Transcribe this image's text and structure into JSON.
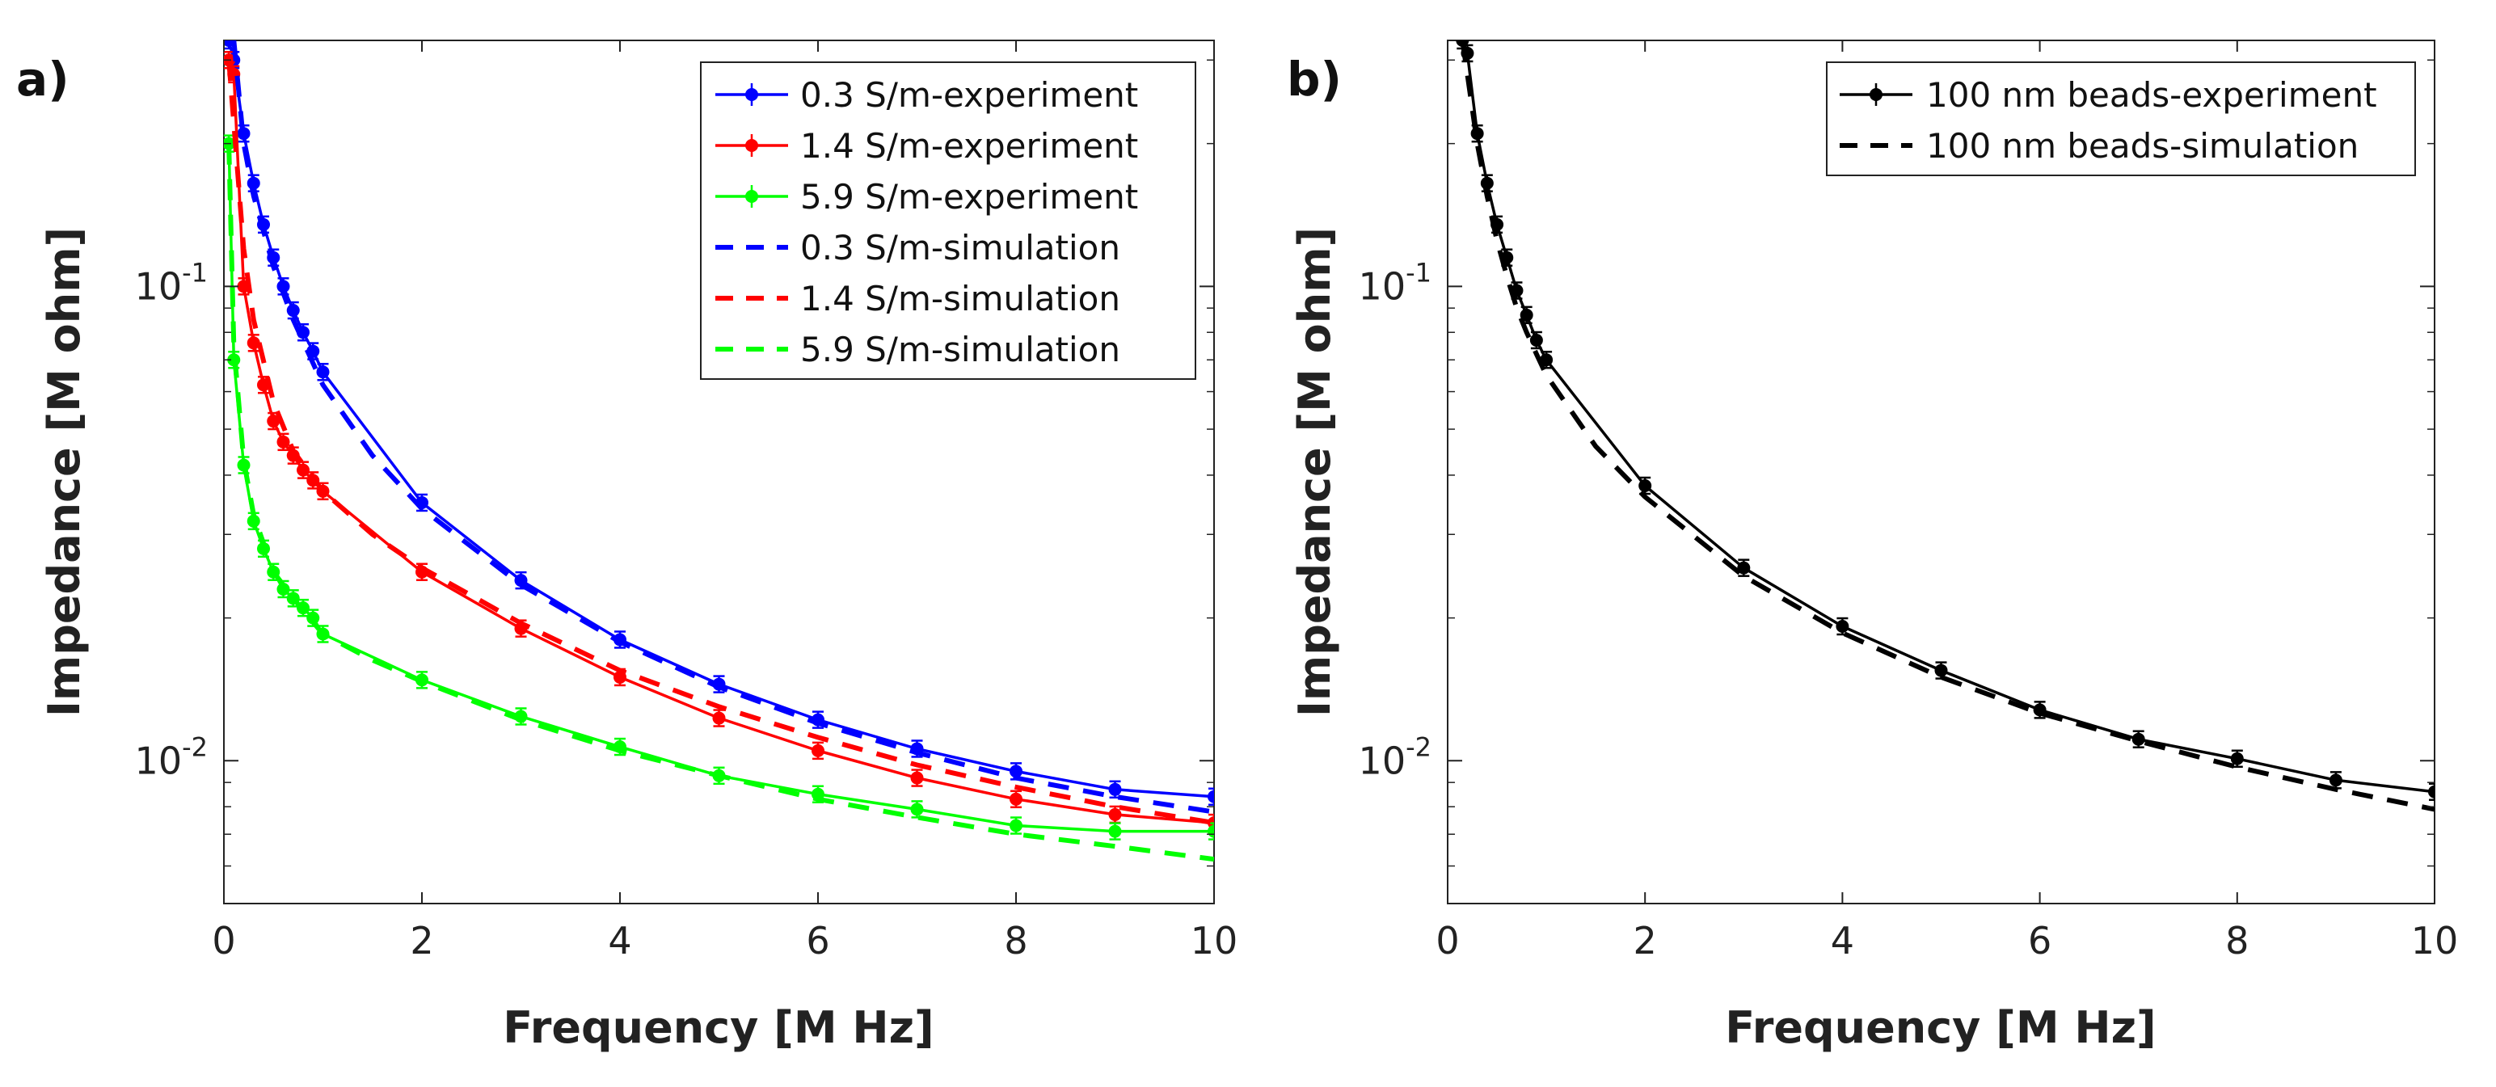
{
  "chart_data": [
    {
      "type": "line",
      "panel_label": "a)",
      "xlabel": "Frequency [M Hz]",
      "ylabel": "Impedance [M ohm]",
      "xscale": "linear",
      "yscale": "log",
      "xlim": [
        0,
        10
      ],
      "ylim": [
        0.005,
        0.33
      ],
      "xticks": [
        "0",
        "2",
        "4",
        "6",
        "8",
        "10"
      ],
      "yticks": [
        {
          "base": "10",
          "exp": "-2",
          "value": 0.01
        },
        {
          "base": "10",
          "exp": "-1",
          "value": 0.1
        }
      ],
      "grid": false,
      "legend_position": "top-right",
      "series": [
        {
          "name": "0.3 S/m-experiment",
          "style": "solid-errorbar",
          "color": "#0000ff",
          "x": [
            0.05,
            0.1,
            0.2,
            0.3,
            0.4,
            0.5,
            0.6,
            0.7,
            0.8,
            0.9,
            1,
            2,
            3,
            4,
            5,
            6,
            7,
            8,
            9,
            10
          ],
          "y": [
            0.33,
            0.3,
            0.21,
            0.165,
            0.135,
            0.115,
            0.1,
            0.089,
            0.08,
            0.073,
            0.066,
            0.035,
            0.024,
            0.018,
            0.0145,
            0.0122,
            0.0106,
            0.0095,
            0.0087,
            0.0084
          ]
        },
        {
          "name": "1.4 S/m-experiment",
          "style": "solid-errorbar",
          "color": "#ff0000",
          "x": [
            0.05,
            0.1,
            0.2,
            0.3,
            0.4,
            0.5,
            0.6,
            0.7,
            0.8,
            0.9,
            1,
            2,
            3,
            4,
            5,
            6,
            7,
            8,
            9,
            10
          ],
          "y": [
            0.3,
            0.28,
            0.1,
            0.076,
            0.062,
            0.052,
            0.047,
            0.044,
            0.041,
            0.039,
            0.037,
            0.025,
            0.019,
            0.015,
            0.0123,
            0.0105,
            0.0092,
            0.0083,
            0.0077,
            0.0074
          ]
        },
        {
          "name": "5.9 S/m-experiment",
          "style": "solid-errorbar",
          "color": "#00ff00",
          "x": [
            0.05,
            0.1,
            0.2,
            0.3,
            0.4,
            0.5,
            0.6,
            0.7,
            0.8,
            0.9,
            1,
            2,
            3,
            4,
            5,
            6,
            7,
            8,
            9,
            10
          ],
          "y": [
            0.2,
            0.07,
            0.042,
            0.032,
            0.028,
            0.025,
            0.023,
            0.022,
            0.021,
            0.02,
            0.0185,
            0.0148,
            0.0124,
            0.0107,
            0.0093,
            0.0085,
            0.0079,
            0.0073,
            0.0071,
            0.0071
          ]
        },
        {
          "name": "0.3 S/m-simulation",
          "style": "dashed",
          "color": "#0000ff",
          "x": [
            0.1,
            0.2,
            0.3,
            0.5,
            0.7,
            1,
            1.5,
            2,
            3,
            4,
            5,
            6,
            7,
            8,
            9,
            10
          ],
          "y": [
            0.33,
            0.2,
            0.155,
            0.11,
            0.085,
            0.062,
            0.044,
            0.034,
            0.0235,
            0.0178,
            0.0143,
            0.012,
            0.0104,
            0.0092,
            0.0084,
            0.0078
          ]
        },
        {
          "name": "1.4 S/m-simulation",
          "style": "dashed",
          "color": "#ff0000",
          "x": [
            0.05,
            0.1,
            0.2,
            0.3,
            0.5,
            0.7,
            1,
            1.5,
            2,
            3,
            4,
            5,
            6,
            7,
            8,
            9,
            10
          ],
          "y": [
            0.3,
            0.22,
            0.12,
            0.085,
            0.057,
            0.045,
            0.037,
            0.03,
            0.0255,
            0.0195,
            0.0155,
            0.013,
            0.0112,
            0.0098,
            0.0088,
            0.008,
            0.0074
          ]
        },
        {
          "name": "5.9 S/m-simulation",
          "style": "dashed",
          "color": "#00ff00",
          "x": [
            0.05,
            0.1,
            0.2,
            0.3,
            0.5,
            0.7,
            1,
            1.5,
            2,
            3,
            4,
            5,
            6,
            7,
            8,
            9,
            10
          ],
          "y": [
            0.2,
            0.075,
            0.043,
            0.033,
            0.025,
            0.022,
            0.0185,
            0.0163,
            0.0147,
            0.0122,
            0.0105,
            0.0093,
            0.0083,
            0.0076,
            0.007,
            0.0066,
            0.0062
          ]
        }
      ]
    },
    {
      "type": "line",
      "panel_label": "b)",
      "xlabel": "Frequency [M Hz]",
      "ylabel": "Impedance [M ohm]",
      "xscale": "linear",
      "yscale": "log",
      "xlim": [
        0,
        10
      ],
      "ylim": [
        0.005,
        0.33
      ],
      "xticks": [
        "0",
        "2",
        "4",
        "6",
        "8",
        "10"
      ],
      "yticks": [
        {
          "base": "10",
          "exp": "-2",
          "value": 0.01
        },
        {
          "base": "10",
          "exp": "-1",
          "value": 0.1
        }
      ],
      "grid": false,
      "legend_position": "top-right",
      "series": [
        {
          "name": "100 nm beads-experiment",
          "style": "solid-errorbar",
          "color": "#000000",
          "x": [
            0.15,
            0.2,
            0.3,
            0.4,
            0.5,
            0.6,
            0.7,
            0.8,
            0.9,
            1,
            2,
            3,
            4,
            5,
            6,
            7,
            8,
            9,
            10
          ],
          "y": [
            0.33,
            0.31,
            0.21,
            0.165,
            0.135,
            0.115,
            0.098,
            0.087,
            0.077,
            0.07,
            0.038,
            0.0255,
            0.0192,
            0.0155,
            0.0128,
            0.0111,
            0.0101,
            0.0091,
            0.0086
          ]
        },
        {
          "name": "100 nm beads-simulation",
          "style": "dashed",
          "color": "#000000",
          "x": [
            0.15,
            0.2,
            0.3,
            0.4,
            0.5,
            0.6,
            0.7,
            0.8,
            0.9,
            1,
            1.5,
            2,
            3,
            4,
            5,
            6,
            7,
            8,
            9,
            10
          ],
          "y": [
            0.33,
            0.28,
            0.2,
            0.155,
            0.125,
            0.105,
            0.09,
            0.08,
            0.072,
            0.065,
            0.046,
            0.036,
            0.0245,
            0.0186,
            0.015,
            0.0126,
            0.011,
            0.0097,
            0.0087,
            0.0079
          ]
        }
      ]
    }
  ]
}
